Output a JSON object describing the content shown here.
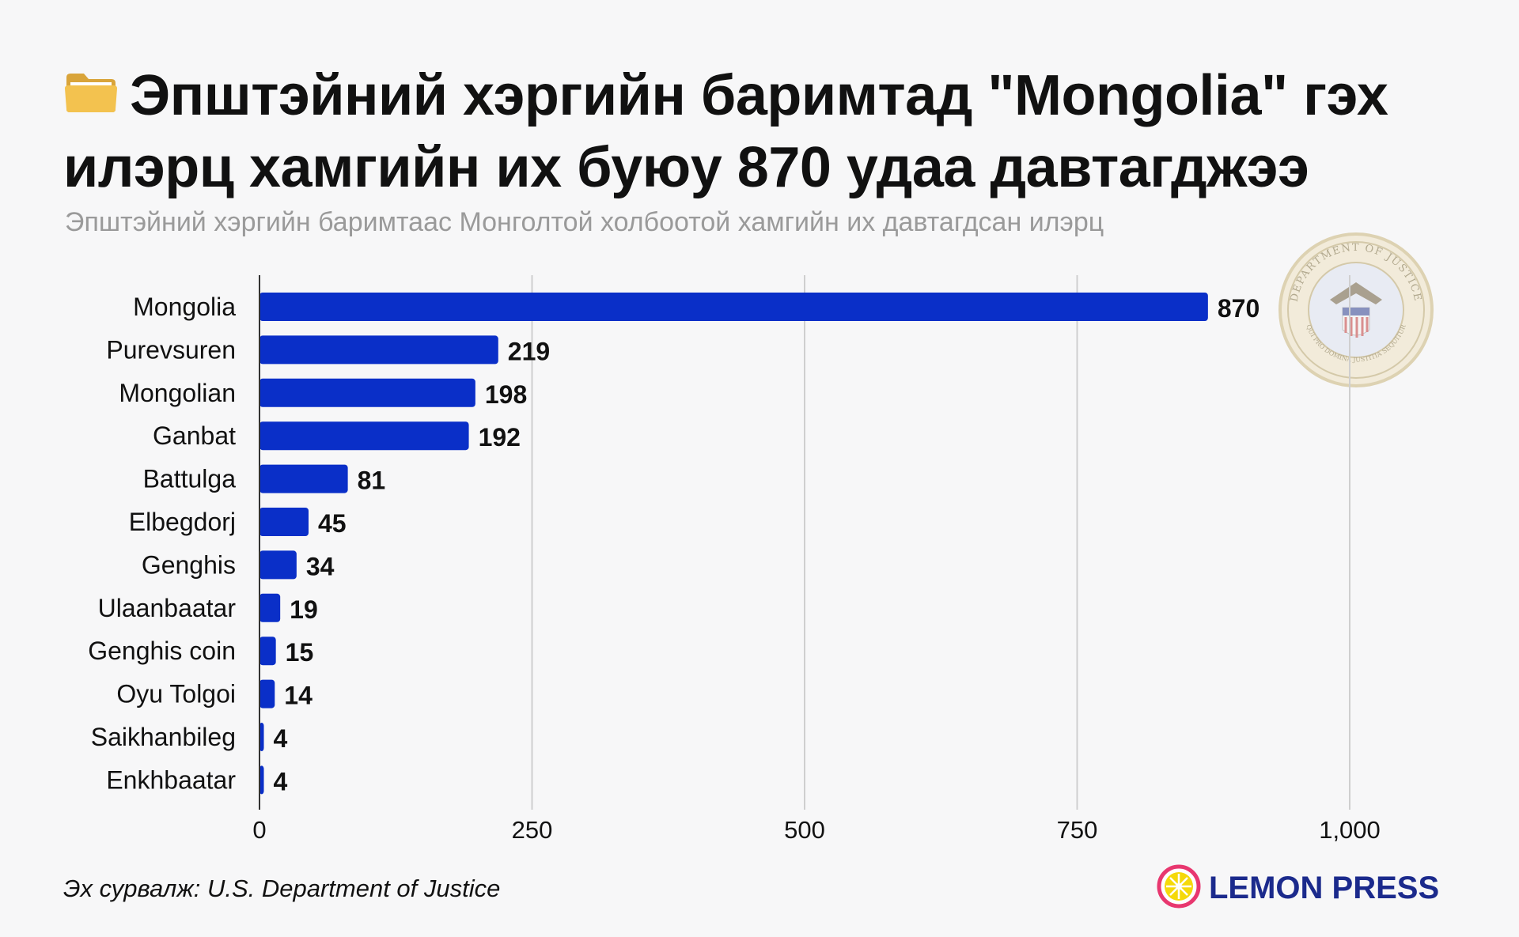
{
  "title": "Эпштэйний хэргийн баримтад \"Mongolia\" гэх илэрц хамгийн их буюу 870 удаа давтагджээ",
  "subtitle": "Эпштэйний хэргийн баримтаас Монголтой холбоотой хамгийн их давтагдсан илэрц",
  "source": "Эх сурвалж: U.S. Department of Justice",
  "brand": "LEMON PRESS",
  "seal_text": "DEPARTMENT OF JUSTICE",
  "seal_motto": "QUI PRO DOMINA JUSTITIA SEQUITUR",
  "colors": {
    "bar": "#0a2fc8",
    "brand": "#1b2a8c",
    "lemon": "#f5d90a",
    "lemon_ring": "#e8376f",
    "grid": "#cfcfcf",
    "axis": "#333333"
  },
  "icons": {
    "title": "folder-icon",
    "logo": "lemon-icon",
    "seal": "doj-seal-icon"
  },
  "chart_data": {
    "type": "bar",
    "orientation": "horizontal",
    "categories": [
      "Mongolia",
      "Purevsuren",
      "Mongolian",
      "Ganbat",
      "Battulga",
      "Elbegdorj",
      "Genghis",
      "Ulaanbaatar",
      "Genghis coin",
      "Oyu Tolgoi",
      "Saikhanbileg",
      "Enkhbaatar"
    ],
    "values": [
      870,
      219,
      198,
      192,
      81,
      45,
      34,
      19,
      15,
      14,
      4,
      4
    ],
    "value_labels": [
      "870",
      "219",
      "198",
      "192",
      "81",
      "45",
      "34",
      "19",
      "15",
      "14",
      "4",
      "4"
    ],
    "xlim": [
      0,
      1000
    ],
    "xticks": [
      0,
      250,
      500,
      750,
      1000
    ],
    "xtick_labels": [
      "0",
      "250",
      "500",
      "750",
      "1,000"
    ],
    "grid": true,
    "legend": "none"
  }
}
